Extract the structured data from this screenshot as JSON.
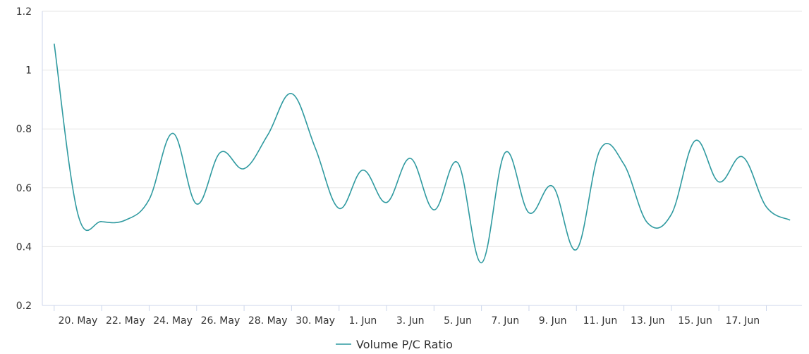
{
  "chart_data": {
    "type": "line",
    "y_ticks": [
      0.2,
      0.4,
      0.6,
      0.8,
      1,
      1.2
    ],
    "ylim": [
      0.2,
      1.2
    ],
    "x_tick_labels": [
      "20. May",
      "22. May",
      "24. May",
      "26. May",
      "28. May",
      "30. May",
      "1. Jun",
      "3. Jun",
      "5. Jun",
      "7. Jun",
      "9. Jun",
      "11. Jun",
      "13. Jun",
      "15. Jun",
      "17. Jun"
    ],
    "x_tick_dates": [
      "2024-05-20",
      "2024-05-22",
      "2024-05-24",
      "2024-05-26",
      "2024-05-28",
      "2024-05-30",
      "2024-06-01",
      "2024-06-03",
      "2024-06-05",
      "2024-06-07",
      "2024-06-09",
      "2024-06-11",
      "2024-06-13",
      "2024-06-15",
      "2024-06-17"
    ],
    "xlim": [
      "2024-05-19",
      "2024-06-18"
    ],
    "grid": true,
    "legend_position": "bottom-center",
    "series": [
      {
        "name": "Volume P/C Ratio",
        "color": "#2f9aa0",
        "points": [
          [
            "2024-05-19",
            1.09
          ],
          [
            "2024-05-20",
            0.51
          ],
          [
            "2024-05-21",
            0.485
          ],
          [
            "2024-05-22",
            0.49
          ],
          [
            "2024-05-23",
            0.56
          ],
          [
            "2024-05-24",
            0.785
          ],
          [
            "2024-05-25",
            0.545
          ],
          [
            "2024-05-26",
            0.72
          ],
          [
            "2024-05-27",
            0.665
          ],
          [
            "2024-05-28",
            0.78
          ],
          [
            "2024-05-29",
            0.92
          ],
          [
            "2024-05-30",
            0.735
          ],
          [
            "2024-05-31",
            0.53
          ],
          [
            "2024-06-01",
            0.66
          ],
          [
            "2024-06-02",
            0.55
          ],
          [
            "2024-06-03",
            0.7
          ],
          [
            "2024-06-04",
            0.525
          ],
          [
            "2024-06-05",
            0.685
          ],
          [
            "2024-06-06",
            0.345
          ],
          [
            "2024-06-07",
            0.72
          ],
          [
            "2024-06-08",
            0.515
          ],
          [
            "2024-06-09",
            0.605
          ],
          [
            "2024-06-10",
            0.39
          ],
          [
            "2024-06-11",
            0.73
          ],
          [
            "2024-06-12",
            0.68
          ],
          [
            "2024-06-13",
            0.48
          ],
          [
            "2024-06-14",
            0.51
          ],
          [
            "2024-06-15",
            0.76
          ],
          [
            "2024-06-16",
            0.62
          ],
          [
            "2024-06-17",
            0.705
          ],
          [
            "2024-06-18",
            0.535
          ],
          [
            "2024-06-19",
            0.49
          ]
        ]
      }
    ]
  }
}
